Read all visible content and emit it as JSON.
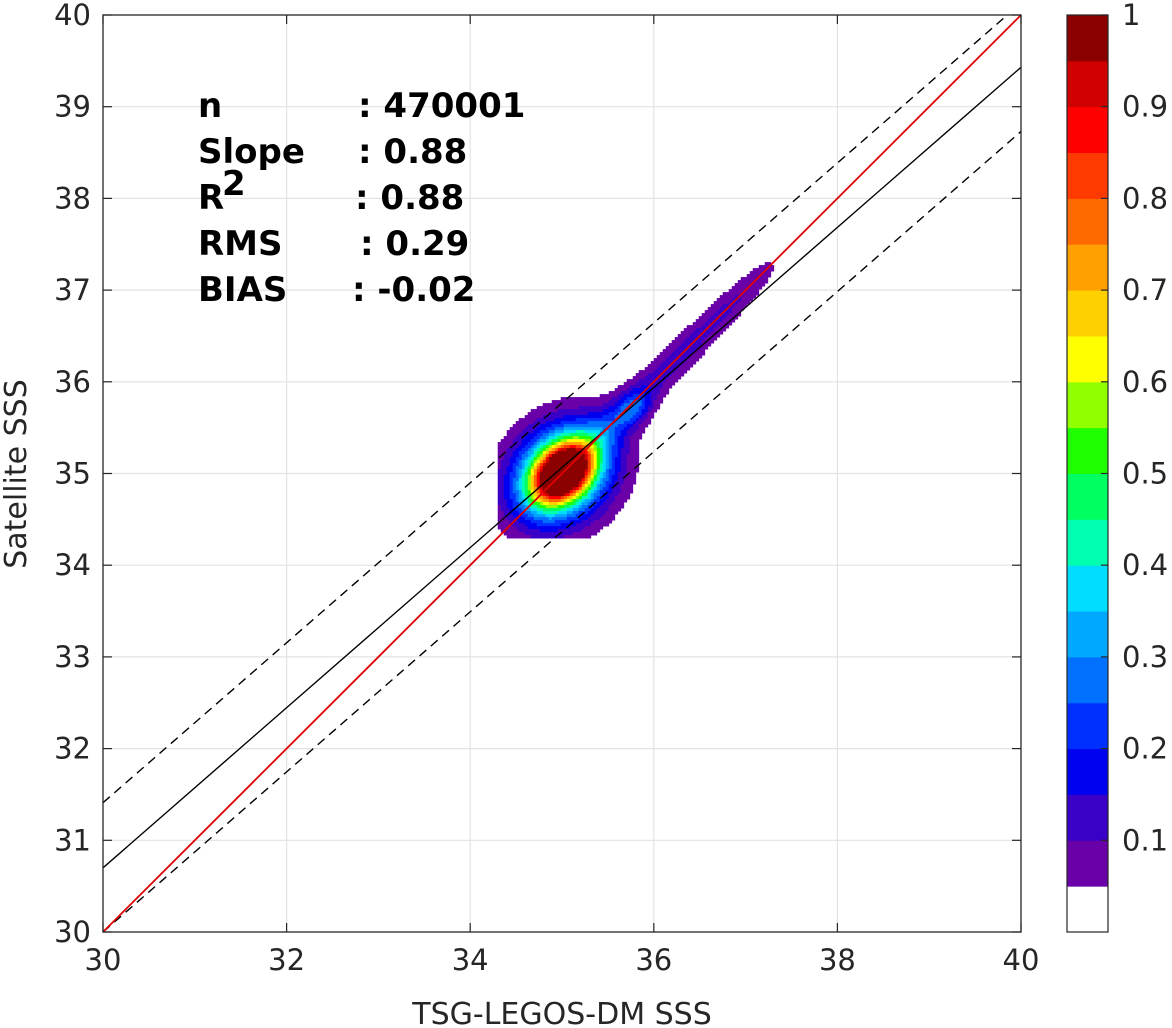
{
  "chart_data": {
    "type": "density-contour-scatter",
    "xlabel": "TSG-LEGOS-DM SSS",
    "ylabel": "Satellite SSS",
    "xlim": [
      30,
      40
    ],
    "ylim": [
      30,
      40
    ],
    "xticks": [
      30,
      32,
      34,
      36,
      38,
      40
    ],
    "yticks": [
      30,
      31,
      32,
      33,
      34,
      35,
      36,
      37,
      38,
      39,
      40
    ],
    "grid": true,
    "lines": {
      "one_to_one": {
        "color": "#e00000",
        "x": [
          30,
          40
        ],
        "y": [
          30,
          40
        ]
      },
      "regression": {
        "color": "#000000",
        "x": [
          30,
          40
        ],
        "y": [
          30.7,
          39.43
        ]
      },
      "upper_bound": {
        "color": "#000000",
        "style": "dashed",
        "x": [
          30,
          40
        ],
        "y": [
          31.41,
          40.13
        ]
      },
      "lower_bound": {
        "color": "#000000",
        "style": "dashed",
        "x": [
          30,
          40
        ],
        "y": [
          30.0,
          38.73
        ]
      }
    },
    "density": {
      "center": [
        35.0,
        35.0
      ],
      "levels": [
        0.05,
        0.1,
        0.15,
        0.2,
        0.25,
        0.3,
        0.35,
        0.4,
        0.45,
        0.5,
        0.55,
        0.6,
        0.65,
        0.7,
        0.75,
        0.8,
        0.85,
        0.9,
        0.95,
        1.0
      ]
    },
    "stats": [
      {
        "label": "n",
        "sep": ": 470001",
        "sup": ""
      },
      {
        "label": "Slope",
        "sep": ": 0.88",
        "sup": ""
      },
      {
        "label": "R",
        "sep": ": 0.88",
        "sup": "2"
      },
      {
        "label": "RMS",
        "sep": ": 0.29",
        "sup": ""
      },
      {
        "label": "BIAS",
        "sep": ": -0.02",
        "sup": ""
      }
    ],
    "colorbar": {
      "range": [
        0,
        1
      ],
      "tick_labels": [
        "0.1",
        "0.2",
        "0.3",
        "0.4",
        "0.5",
        "0.6",
        "0.7",
        "0.8",
        "0.9",
        "1"
      ],
      "tick_values": [
        0.1,
        0.2,
        0.3,
        0.4,
        0.5,
        0.6,
        0.7,
        0.8,
        0.9,
        1.0
      ],
      "colors": [
        "#ffffff",
        "#6a00a8",
        "#3a00c8",
        "#0000f0",
        "#0030ff",
        "#0070ff",
        "#00a8ff",
        "#00ddff",
        "#00ffb0",
        "#00ff60",
        "#20ff00",
        "#90ff00",
        "#ffff00",
        "#ffd000",
        "#ffa000",
        "#ff6a00",
        "#ff3a00",
        "#ff0000",
        "#d00000",
        "#8b0000"
      ]
    }
  }
}
